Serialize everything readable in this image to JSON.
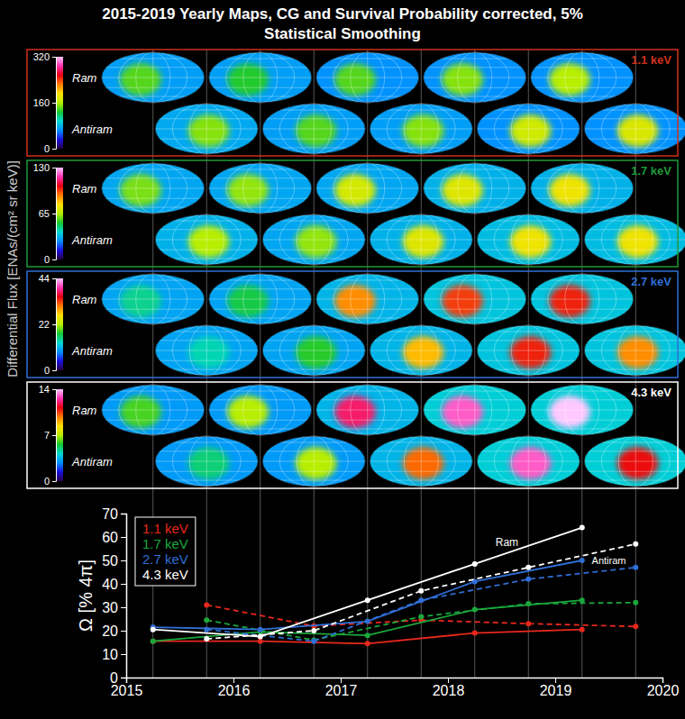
{
  "chart_data": [
    {
      "type": "map_grid",
      "title": "2015-2019 Yearly Maps, CG and Survival Probability corrected, 5% Statistical Smoothing",
      "colorbar_label": "Differential Flux [ENAs/(cm² sr keV)]",
      "rows": [
        "Ram",
        "Antiram"
      ],
      "panels": [
        {
          "label": "1.1 keV",
          "color": "#d0301c",
          "colorbar_range": [
            0,
            320
          ],
          "colorbar_ticks": [
            0,
            160,
            320
          ],
          "ram": {
            "x": [
              2015.25,
              2016.25,
              2017.25,
              2018.25,
              2019.25
            ],
            "background": [
              70,
              70,
              65,
              65,
              65
            ],
            "peak": [
              140,
              130,
              140,
              150,
              160
            ]
          },
          "antiram": {
            "x": [
              2015.75,
              2016.75,
              2017.75,
              2018.75,
              2019.75
            ],
            "background": [
              75,
              70,
              70,
              65,
              65
            ],
            "peak": [
              150,
              140,
              150,
              170,
              175
            ]
          }
        },
        {
          "label": "1.7 keV",
          "color": "#1f9a3a",
          "colorbar_range": [
            0,
            130
          ],
          "colorbar_ticks": [
            0,
            65,
            130
          ],
          "ram": {
            "x": [
              2015.25,
              2016.25,
              2017.25,
              2018.25,
              2019.25
            ],
            "background": [
              30,
              30,
              30,
              32,
              32
            ],
            "peak": [
              60,
              62,
              70,
              72,
              75
            ]
          },
          "antiram": {
            "x": [
              2015.75,
              2016.75,
              2017.75,
              2018.75,
              2019.75
            ],
            "background": [
              32,
              30,
              32,
              34,
              34
            ],
            "peak": [
              65,
              62,
              72,
              75,
              75
            ]
          }
        },
        {
          "label": "2.7 keV",
          "color": "#2f6fd6",
          "colorbar_range": [
            0,
            44
          ],
          "colorbar_ticks": [
            0,
            22,
            44
          ],
          "ram": {
            "x": [
              2015.25,
              2016.25,
              2017.25,
              2018.25,
              2019.25
            ],
            "background": [
              10,
              10,
              11,
              12,
              12
            ],
            "peak": [
              15,
              17,
              30,
              33,
              34
            ]
          },
          "antiram": {
            "x": [
              2015.75,
              2016.75,
              2017.75,
              2018.75,
              2019.75
            ],
            "background": [
              10,
              10,
              11,
              12,
              12
            ],
            "peak": [
              14,
              18,
              28,
              34,
              30
            ]
          }
        },
        {
          "label": "4.3 keV",
          "color": "#ffffff",
          "colorbar_range": [
            0,
            14
          ],
          "colorbar_ticks": [
            0,
            7,
            14
          ],
          "ram": {
            "x": [
              2015.25,
              2016.25,
              2017.25,
              2018.25,
              2019.25
            ],
            "background": [
              3,
              3,
              3.5,
              4,
              4
            ],
            "peak": [
              6,
              7,
              12,
              13,
              14
            ]
          },
          "antiram": {
            "x": [
              2015.75,
              2016.75,
              2017.75,
              2018.75,
              2019.75
            ],
            "background": [
              3,
              3,
              3.5,
              4,
              4
            ],
            "peak": [
              5,
              7,
              10,
              13,
              11
            ]
          }
        }
      ]
    },
    {
      "type": "line",
      "ylabel": "Ω [% 4π]",
      "xlim": [
        2015,
        2020
      ],
      "xticks": [
        2015,
        2016,
        2017,
        2018,
        2019,
        2020
      ],
      "ylim": [
        0,
        70
      ],
      "yticks": [
        0,
        10,
        20,
        30,
        40,
        50,
        60,
        70
      ],
      "legend": "top-left",
      "marker": "circle",
      "annotations": [
        "Ram",
        "Antiram"
      ],
      "series": [
        {
          "name": "1.1 keV",
          "color": "#e8281c",
          "ram": {
            "x": [
              2015.25,
              2016.25,
              2017.25,
              2018.25,
              2019.25
            ],
            "values": [
              15.5,
              15.5,
              14.5,
              19,
              20.5
            ],
            "line_style": "solid"
          },
          "antiram": {
            "x": [
              2015.75,
              2016.75,
              2017.75,
              2018.75,
              2019.75
            ],
            "values": [
              31,
              22,
              24.5,
              23,
              21.8
            ],
            "line_style": "dashed"
          }
        },
        {
          "name": "1.7 keV",
          "color": "#1aa83c",
          "ram": {
            "x": [
              2015.25,
              2016.25,
              2017.25,
              2018.25,
              2019.25
            ],
            "values": [
              15.5,
              19.5,
              18,
              29,
              33
            ],
            "line_style": "solid"
          },
          "antiram": {
            "x": [
              2015.75,
              2016.75,
              2017.75,
              2018.75,
              2019.75
            ],
            "values": [
              24.5,
              16,
              26,
              31.5,
              32
            ],
            "line_style": "dashed"
          }
        },
        {
          "name": "2.7 keV",
          "color": "#2f6fd6",
          "ram": {
            "x": [
              2015.25,
              2016.25,
              2017.25,
              2018.25,
              2019.25
            ],
            "values": [
              21.5,
              20.5,
              24,
              41,
              50
            ],
            "line_style": "solid"
          },
          "antiram": {
            "x": [
              2015.75,
              2016.75,
              2017.75,
              2018.75,
              2019.75
            ],
            "values": [
              20.5,
              15.5,
              33,
              42,
              47
            ],
            "line_style": "dashed"
          }
        },
        {
          "name": "4.3 keV",
          "color": "#ffffff",
          "ram": {
            "x": [
              2015.25,
              2016.25,
              2017.25,
              2018.25,
              2019.25
            ],
            "values": [
              20.5,
              17.5,
              33,
              48.5,
              64
            ],
            "line_style": "solid"
          },
          "antiram": {
            "x": [
              2015.75,
              2016.75,
              2017.75,
              2018.75,
              2019.75
            ],
            "values": [
              16.5,
              20,
              37,
              47,
              57
            ],
            "line_style": "dashed"
          }
        }
      ]
    }
  ]
}
